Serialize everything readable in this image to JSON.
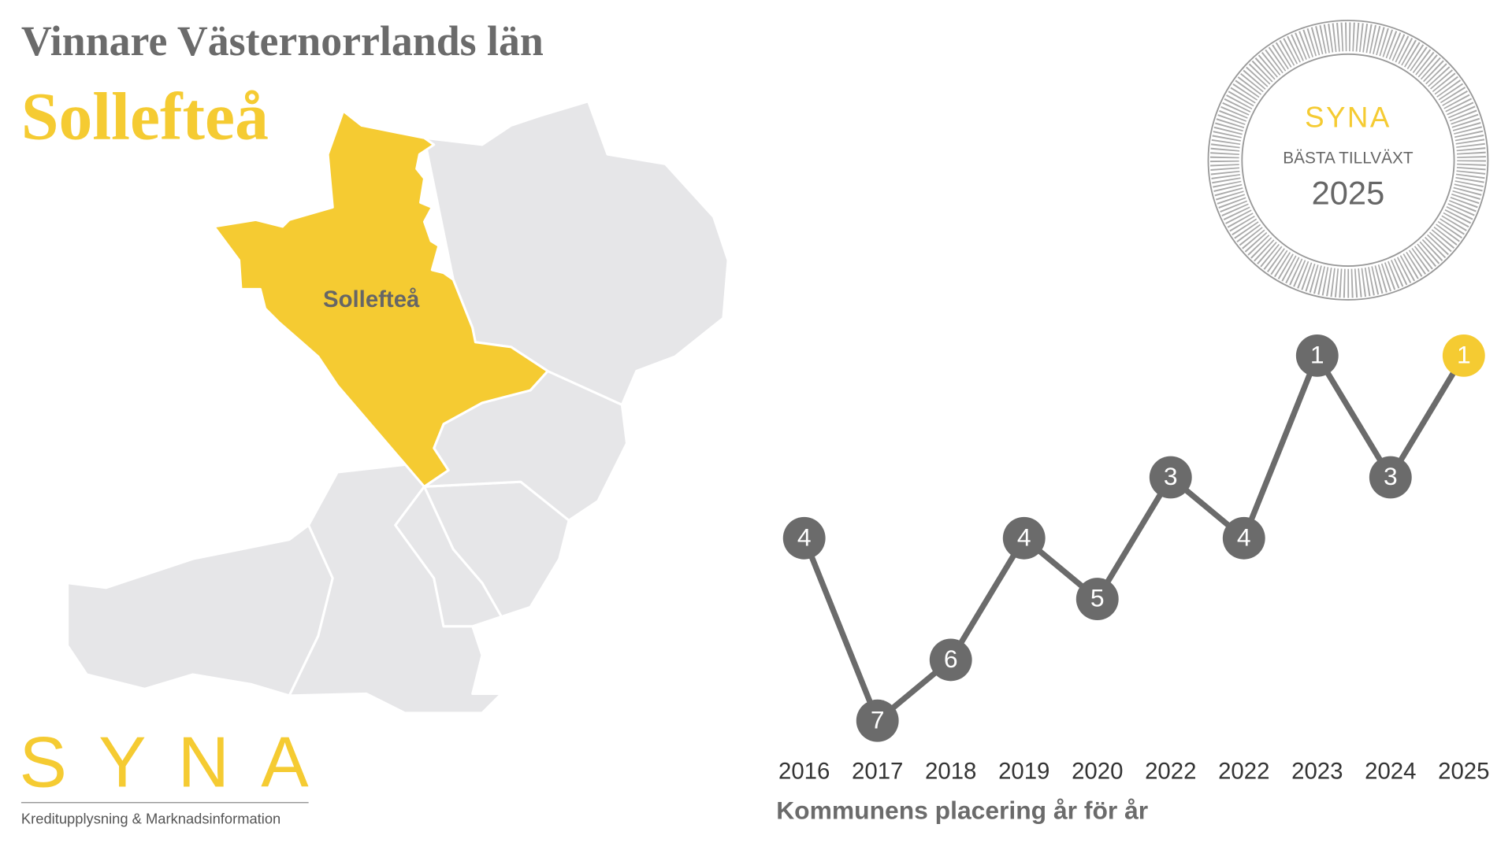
{
  "header": {
    "title": "Vinnare Västernorrlands län",
    "subtitle": "Sollefteå"
  },
  "map": {
    "label": "Sollefteå",
    "highlight_color": "#f5cb32",
    "region_color": "#e6e6e8"
  },
  "badge": {
    "brand": "SYNA",
    "caption": "BÄSTA TILLVÄXT",
    "year": "2025"
  },
  "logo": {
    "brand": "SYNA",
    "tagline": "Kreditupplysning & Marknadsinformation"
  },
  "chart_data": {
    "type": "line",
    "x_label": "Kommunens placering år för år",
    "categories": [
      "2016",
      "2017",
      "2018",
      "2019",
      "2020",
      "2022",
      "2022",
      "2023",
      "2024",
      "2025"
    ],
    "values": [
      4,
      7,
      6,
      4,
      5,
      3,
      4,
      1,
      3,
      1
    ],
    "color": "#6b6b6b",
    "point_colors": [
      "#6b6b6b",
      "#6b6b6b",
      "#6b6b6b",
      "#6b6b6b",
      "#6b6b6b",
      "#6b6b6b",
      "#6b6b6b",
      "#6b6b6b",
      "#6b6b6b",
      "#f5cb32"
    ],
    "ylim": [
      1,
      7
    ],
    "y_inverted": true
  }
}
